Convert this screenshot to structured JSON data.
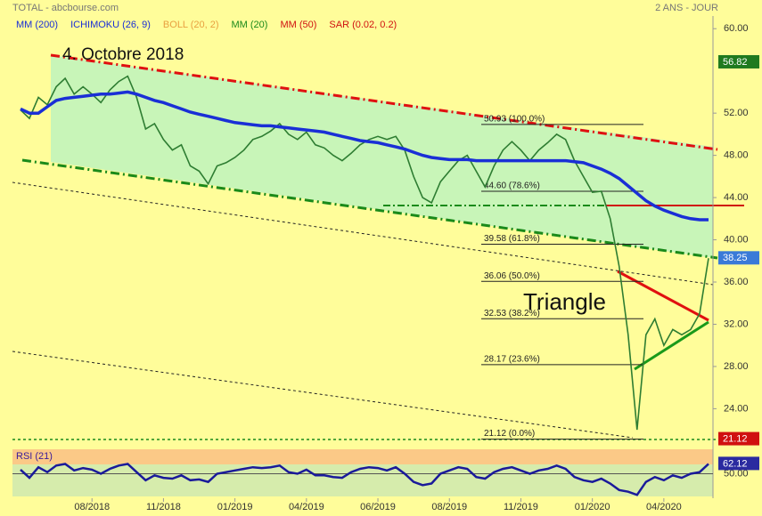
{
  "header": {
    "source": "TOTAL - abcbourse.com",
    "period": "2 ANS - JOUR"
  },
  "chart_data": [
    {
      "type": "line",
      "legend": [
        {
          "name": "MM (200)",
          "color": "#1a2fd6"
        },
        {
          "name": "ICHIMOKU (26, 9)",
          "color": "#1a2fd6"
        },
        {
          "name": "BOLL (20, 2)",
          "color": "#e8a040"
        },
        {
          "name": "MM (20)",
          "color": "#1a8a1a"
        },
        {
          "name": "MM (50)",
          "color": "#d01010"
        },
        {
          "name": "SAR (0.02, 0.2)",
          "color": "#d01010"
        }
      ],
      "annotations": [
        "4. Octobre 2018",
        "Triangle"
      ],
      "categories": [
        null,
        null,
        null,
        null,
        null,
        null,
        null,
        null,
        "08/2018",
        null,
        null,
        null,
        null,
        null,
        null,
        null,
        "11/2018",
        null,
        null,
        null,
        null,
        null,
        null,
        null,
        "01/2019",
        null,
        null,
        null,
        null,
        null,
        null,
        null,
        "04/2019",
        null,
        null,
        null,
        null,
        null,
        null,
        null,
        "06/2019",
        null,
        null,
        null,
        null,
        null,
        null,
        null,
        "08/2019",
        null,
        null,
        null,
        null,
        null,
        null,
        null,
        "11/2019",
        null,
        null,
        null,
        null,
        null,
        null,
        null,
        "01/2020",
        null,
        null,
        null,
        null,
        null,
        null,
        null,
        "04/2020",
        null,
        null,
        null,
        null,
        null
      ],
      "series": [
        {
          "name": "TOTAL",
          "color": "#2e7d32",
          "values": [
            52.3,
            51.5,
            53.5,
            52.8,
            54.5,
            55.3,
            53.8,
            54.5,
            53.8,
            53,
            54.2,
            55,
            55.5,
            53.5,
            50.5,
            51,
            49.5,
            48.5,
            49,
            47,
            46.5,
            45.3,
            47,
            47.3,
            47.8,
            48.5,
            49.5,
            49.8,
            50.3,
            51,
            50,
            49.5,
            50.2,
            49,
            48.7,
            48,
            47.5,
            48.2,
            49,
            49.5,
            49.8,
            49.5,
            49.8,
            48.5,
            46,
            44,
            43.5,
            45.5,
            46.5,
            47.5,
            48,
            46.5,
            45,
            47,
            48.5,
            49.3,
            48.5,
            47.5,
            48.5,
            49.2,
            50,
            49.5,
            47.5,
            46,
            44.5,
            44.6,
            42,
            37.5,
            31,
            22,
            31,
            32.5,
            30,
            31.5,
            31,
            31.5,
            33,
            38.25
          ]
        },
        {
          "name": "MM (200)",
          "color": "#1a2fd6",
          "values": [
            52.4,
            52.0,
            52.0,
            52.6,
            53.2,
            53.4,
            53.5,
            53.6,
            53.7,
            53.8,
            53.8,
            53.9,
            54.0,
            53.8,
            53.5,
            53.2,
            53.0,
            52.7,
            52.4,
            52.1,
            51.9,
            51.7,
            51.5,
            51.3,
            51.1,
            51.0,
            50.9,
            50.8,
            50.8,
            50.7,
            50.6,
            50.5,
            50.4,
            50.3,
            50.2,
            50.0,
            49.8,
            49.6,
            49.4,
            49.3,
            49.2,
            49.0,
            48.8,
            48.6,
            48.3,
            48.0,
            47.8,
            47.7,
            47.6,
            47.6,
            47.6,
            47.5,
            47.5,
            47.5,
            47.5,
            47.5,
            47.5,
            47.5,
            47.5,
            47.5,
            47.5,
            47.5,
            47.4,
            47.3,
            47.0,
            46.7,
            46.3,
            45.8,
            45.1,
            44.4,
            43.7,
            43.2,
            42.8,
            42.5,
            42.2,
            42.0,
            41.9,
            41.9
          ]
        }
      ],
      "fib_levels": [
        {
          "value": 50.93,
          "label": "50.93  (100.0%)"
        },
        {
          "value": 44.6,
          "label": "44.60  (78.6%)"
        },
        {
          "value": 39.58,
          "label": "39.58  (61.8%)"
        },
        {
          "value": 36.06,
          "label": "36.06  (50.0%)"
        },
        {
          "value": 32.53,
          "label": "32.53  (38.2%)"
        },
        {
          "value": 28.17,
          "label": "28.17  (23.6%)"
        },
        {
          "value": 21.12,
          "label": "21.12  (0.0%)"
        }
      ],
      "marker": 56.82,
      "ylim": [
        21,
        61.2
      ],
      "yticks": [
        {
          "value": 24,
          "label": "24.00"
        },
        {
          "value": 28,
          "label": "28.00"
        },
        {
          "value": 32,
          "label": "32.00"
        },
        {
          "value": 36,
          "label": "36.00"
        },
        {
          "value": 40,
          "label": "40.00"
        },
        {
          "value": 44,
          "label": "44.00"
        },
        {
          "value": 48,
          "label": "48.00"
        },
        {
          "value": 52,
          "label": "52.00"
        },
        {
          "value": 60,
          "label": "60.00"
        }
      ]
    },
    {
      "type": "line",
      "title": "RSI (21)",
      "color": "#1a1a9a",
      "values": [
        55,
        45,
        58,
        52,
        60,
        62,
        54,
        57,
        55,
        50,
        56,
        60,
        62,
        52,
        42,
        48,
        45,
        44,
        48,
        42,
        43,
        40,
        50,
        52,
        54,
        56,
        58,
        57,
        58,
        60,
        52,
        50,
        55,
        48,
        48,
        46,
        45,
        52,
        56,
        58,
        57,
        54,
        58,
        50,
        40,
        36,
        38,
        50,
        54,
        58,
        56,
        46,
        44,
        52,
        56,
        58,
        54,
        50,
        54,
        56,
        60,
        56,
        46,
        42,
        40,
        44,
        38,
        30,
        28,
        24,
        40,
        46,
        42,
        48,
        45,
        50,
        52,
        62.12
      ],
      "ylim": [
        20,
        80
      ],
      "yticks": [
        {
          "value": 50,
          "label": "50.00"
        }
      ]
    }
  ]
}
